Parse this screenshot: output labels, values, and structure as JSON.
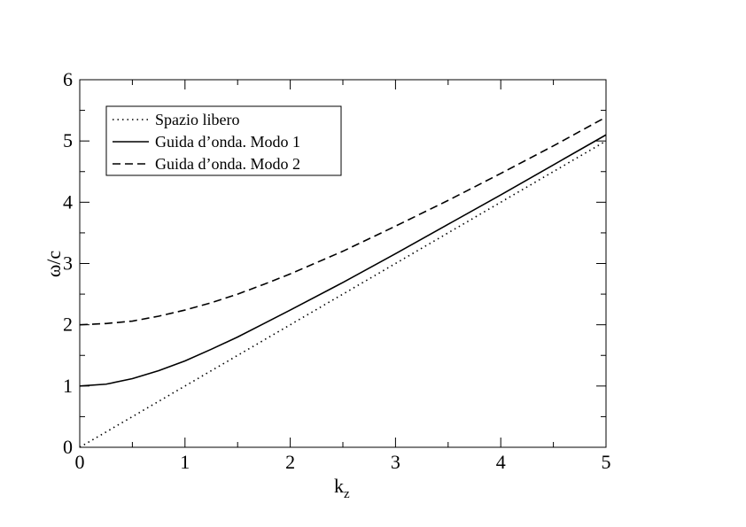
{
  "chart_data": {
    "type": "line",
    "title": "",
    "xlabel": "k",
    "xlabel_sub": "z",
    "ylabel": "ω/c",
    "xlim": [
      0,
      5
    ],
    "ylim": [
      0,
      6
    ],
    "xticks": [
      "0",
      "1",
      "2",
      "3",
      "4",
      "5"
    ],
    "yticks": [
      "0",
      "1",
      "2",
      "3",
      "4",
      "5",
      "6"
    ],
    "grid": false,
    "legend_position": "top-left",
    "series": [
      {
        "name": "Spazio libero",
        "style": "dotted",
        "x": [
          0,
          0.5,
          1,
          1.5,
          2,
          2.5,
          3,
          3.5,
          4,
          4.5,
          5
        ],
        "y": [
          0,
          0.5,
          1,
          1.5,
          2,
          2.5,
          3,
          3.5,
          4,
          4.5,
          5
        ]
      },
      {
        "name": "Guida d’onda. Modo 1",
        "style": "solid",
        "x": [
          0,
          0.25,
          0.5,
          0.75,
          1,
          1.25,
          1.5,
          1.75,
          2,
          2.5,
          3,
          3.5,
          4,
          4.5,
          5
        ],
        "y": [
          1,
          1.03,
          1.12,
          1.25,
          1.41,
          1.6,
          1.8,
          2.02,
          2.24,
          2.69,
          3.16,
          3.64,
          4.12,
          4.61,
          5.1
        ]
      },
      {
        "name": "Guida d’onda. Modo 2",
        "style": "dashed",
        "x": [
          0,
          0.25,
          0.5,
          0.75,
          1,
          1.25,
          1.5,
          1.75,
          2,
          2.5,
          3,
          3.5,
          4,
          4.5,
          5
        ],
        "y": [
          2,
          2.02,
          2.06,
          2.14,
          2.24,
          2.36,
          2.5,
          2.66,
          2.83,
          3.2,
          3.61,
          4.03,
          4.47,
          4.92,
          5.39
        ]
      }
    ]
  }
}
